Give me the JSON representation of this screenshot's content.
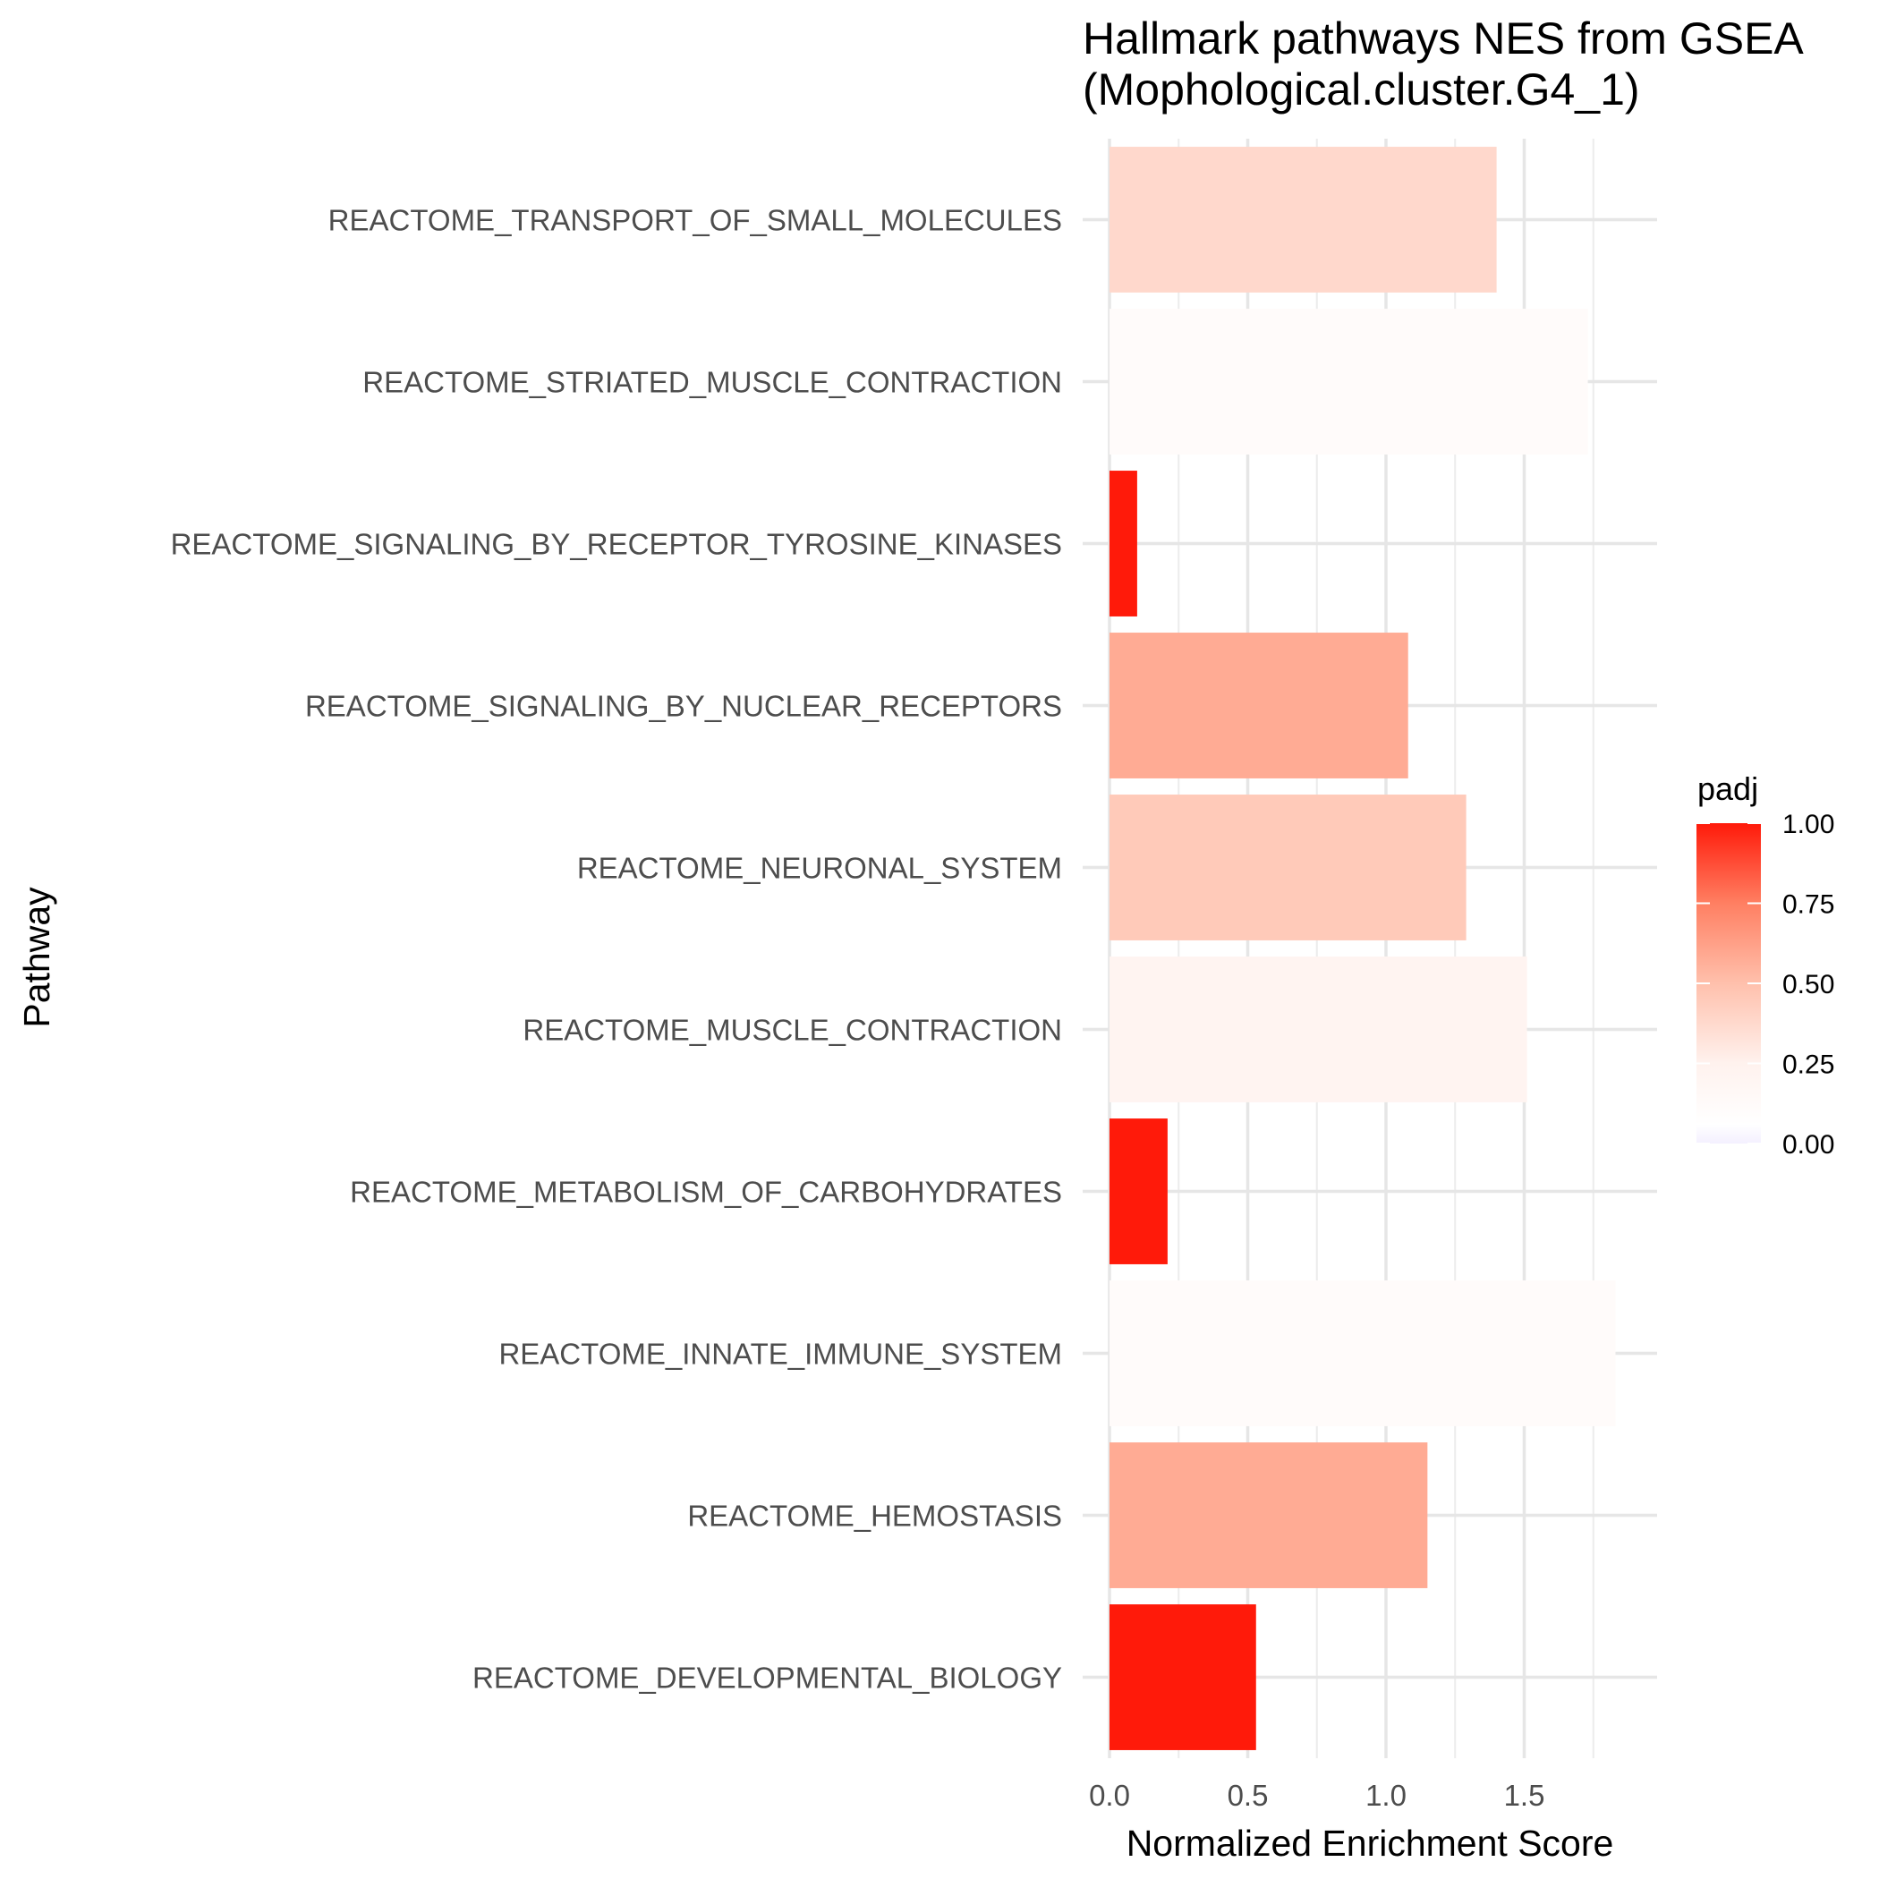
{
  "chart_data": {
    "type": "bar",
    "orientation": "horizontal",
    "title": "Hallmark pathways NES from GSEA\n (Mophological.cluster.G4_1)",
    "xlabel": "Normalized Enrichment Score",
    "ylabel": "Pathway",
    "xlim": [
      0,
      1.91
    ],
    "xticks": [
      0.0,
      0.5,
      1.0,
      1.5
    ],
    "xtick_labels": [
      "0.0",
      "0.5",
      "1.0",
      "1.5"
    ],
    "categories": [
      "REACTOME_TRANSPORT_OF_SMALL_MOLECULES",
      "REACTOME_STRIATED_MUSCLE_CONTRACTION",
      "REACTOME_SIGNALING_BY_RECEPTOR_TYROSINE_KINASES",
      "REACTOME_SIGNALING_BY_NUCLEAR_RECEPTORS",
      "REACTOME_NEURONAL_SYSTEM",
      "REACTOME_MUSCLE_CONTRACTION",
      "REACTOME_METABOLISM_OF_CARBOHYDRATES",
      "REACTOME_INNATE_IMMUNE_SYSTEM",
      "REACTOME_HEMOSTASIS",
      "REACTOME_DEVELOPMENTAL_BIOLOGY"
    ],
    "values": [
      1.4,
      1.73,
      0.1,
      1.08,
      1.29,
      1.51,
      0.21,
      1.83,
      1.15,
      0.53
    ],
    "fill_values": [
      0.38,
      0.12,
      1.0,
      0.58,
      0.45,
      0.22,
      1.0,
      0.12,
      0.58,
      1.0
    ],
    "grid": true,
    "legend": {
      "title": "padj",
      "placement": "right",
      "min": 0.0,
      "max": 1.0,
      "ticks": [
        1.0,
        0.75,
        0.5,
        0.25,
        0.0
      ],
      "tick_labels": [
        "1.00",
        "0.75",
        "0.50",
        "0.25",
        "0.00"
      ],
      "low_color": "#f4f0ff",
      "mid_color": "#ffffff",
      "high_color": "#ff1a0a"
    }
  }
}
